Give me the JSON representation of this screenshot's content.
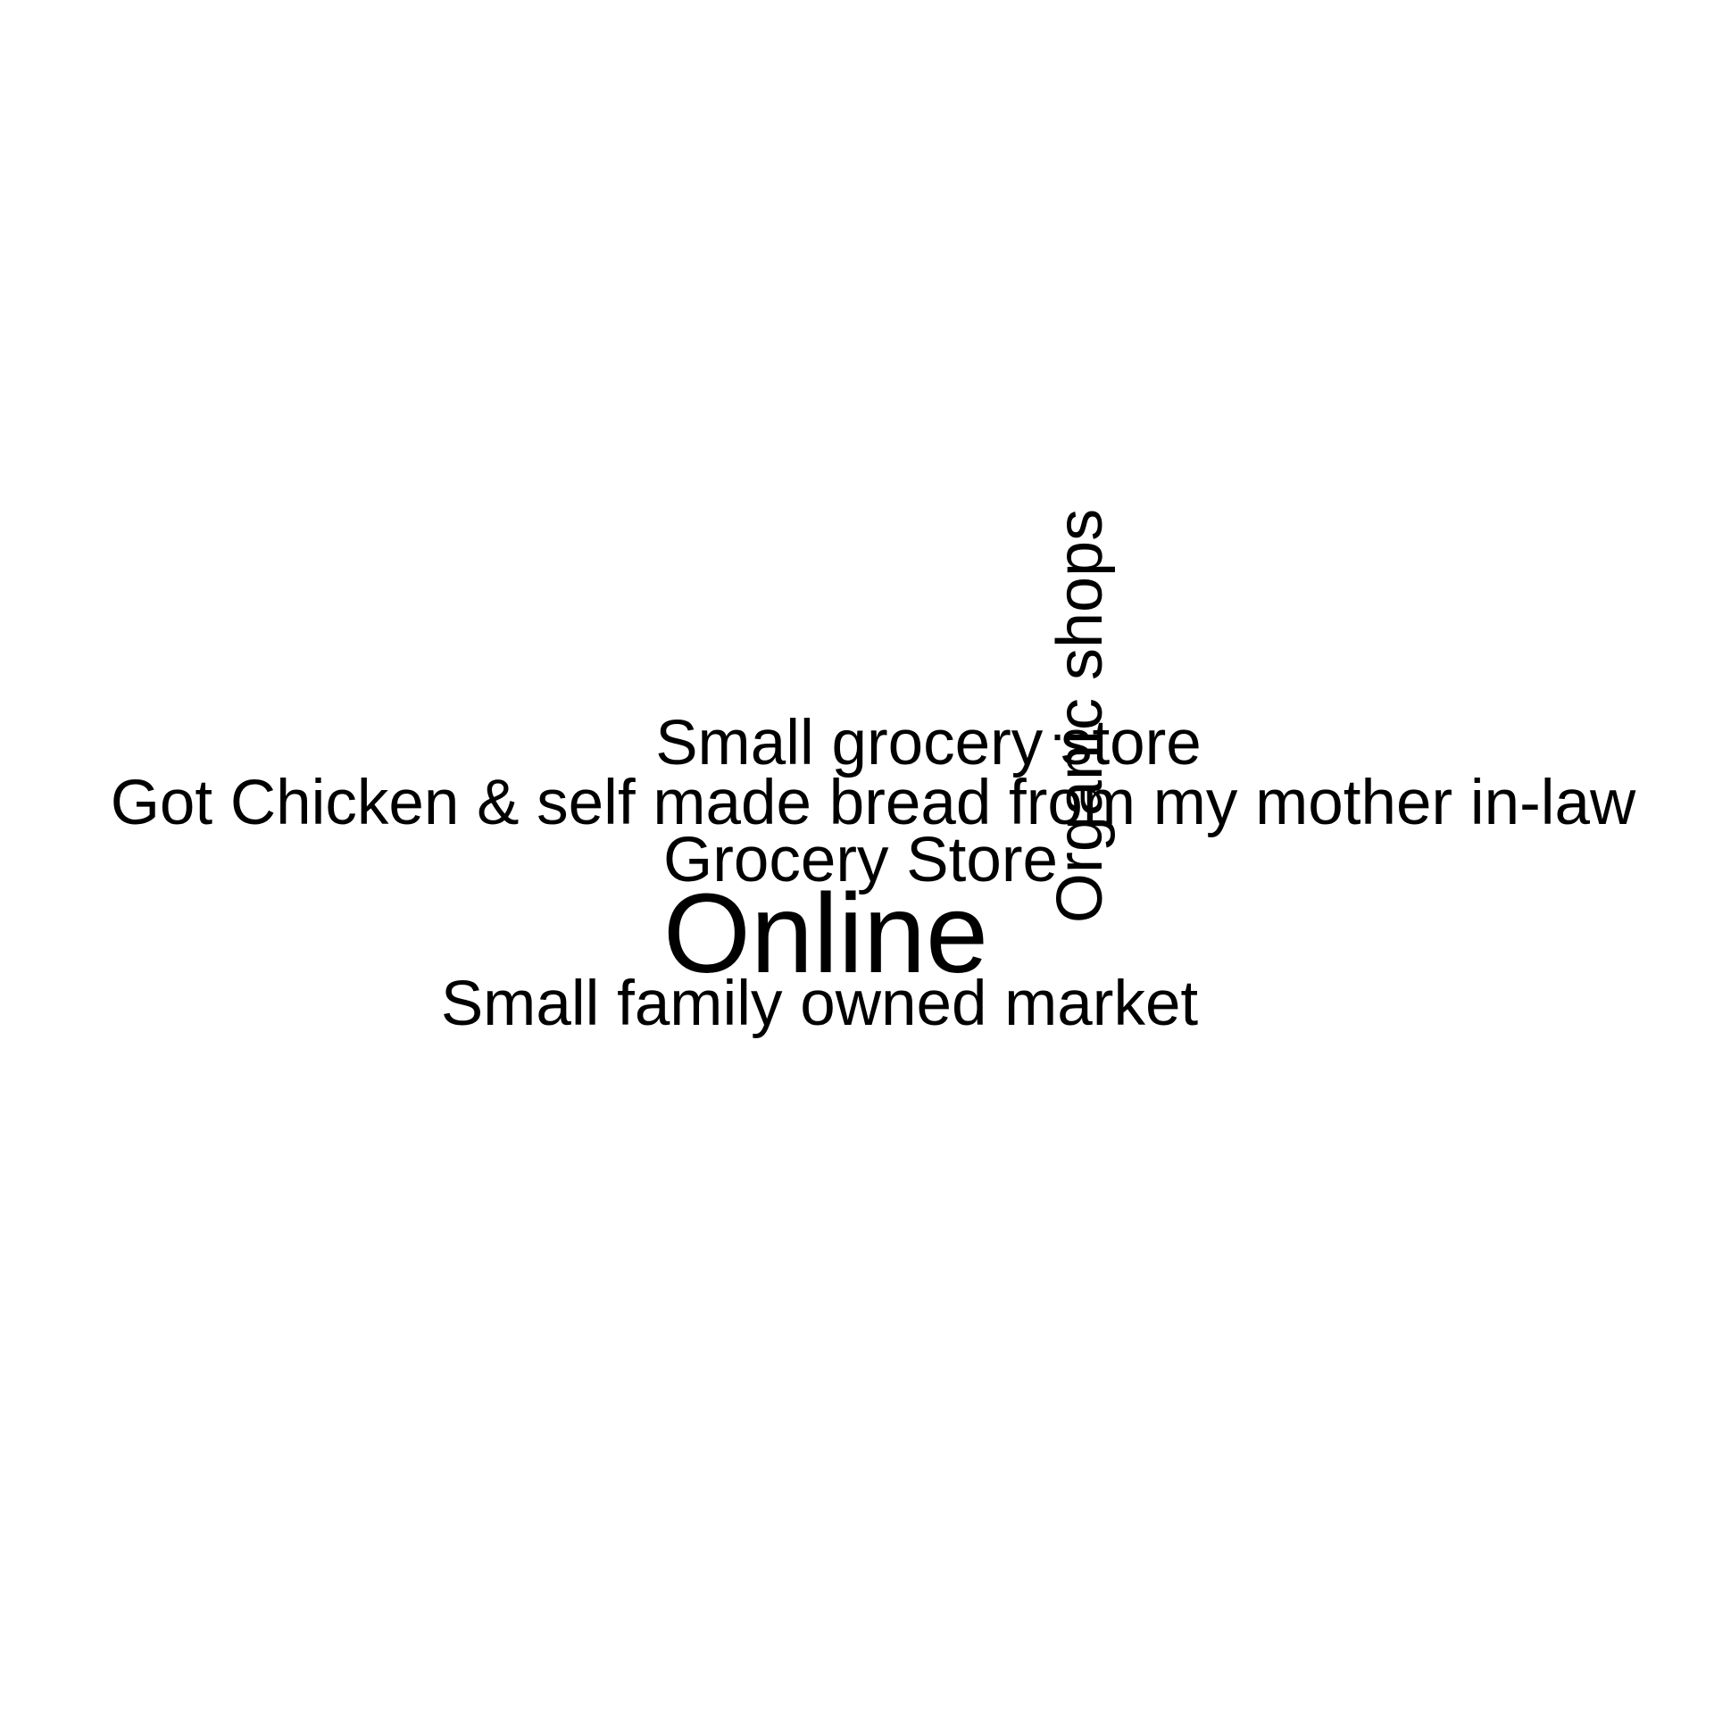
{
  "chart_data": {
    "type": "wordcloud",
    "text_color": "#000000",
    "background_color": "#ffffff",
    "words": [
      {
        "text": "Online",
        "weight": 2,
        "rotated": false
      },
      {
        "text": "Organic shops",
        "weight": 1,
        "rotated": true
      },
      {
        "text": "Small grocery store",
        "weight": 1,
        "rotated": false
      },
      {
        "text": "Got Chicken & self made bread from my mother in-law",
        "weight": 1,
        "rotated": false
      },
      {
        "text": "Grocery Store",
        "weight": 1,
        "rotated": false
      },
      {
        "text": "Small family owned market",
        "weight": 1,
        "rotated": false
      }
    ]
  }
}
